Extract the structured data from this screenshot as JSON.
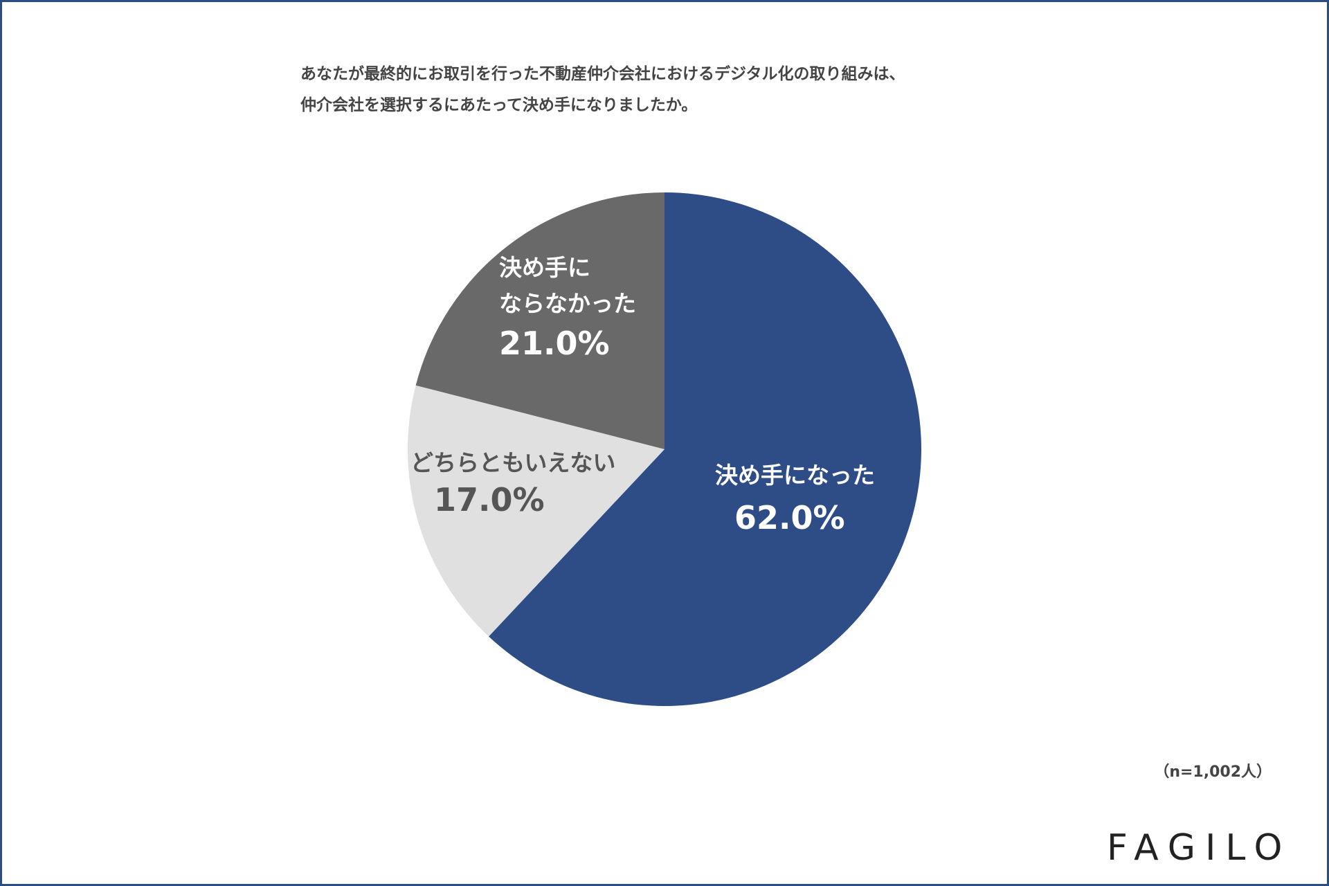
{
  "chart_data": {
    "type": "pie",
    "title": "あなたが最終的にお取引を行った不動産仲介会社におけるデジタル化の取り組みは、\n仲介会社を選択するにあたって決め手になりましたか。",
    "categories": [
      "決め手になった",
      "どちらともいえない",
      "決め手に\nならなかった"
    ],
    "values": [
      62,
      17,
      21
    ],
    "value_labels": [
      "62.0%",
      "17.0%",
      "21.0%"
    ],
    "colors": [
      "#2e4d87",
      "#e0e0e0",
      "#696969"
    ],
    "note": "（n=1,002人）",
    "logo": "FAGILO"
  }
}
